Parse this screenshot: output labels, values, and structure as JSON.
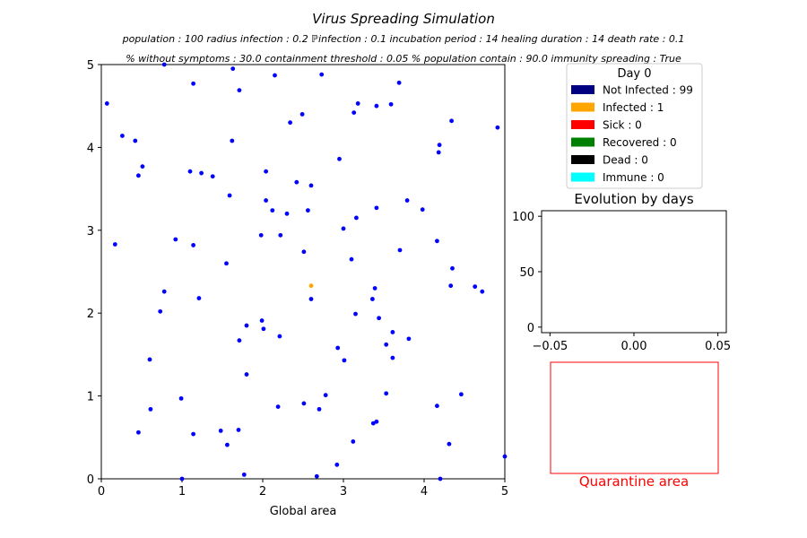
{
  "chart_data": [
    {
      "type": "scatter",
      "title": "Virus Spreading Simulation",
      "subtitle": {
        "line1": [
          "population : 100",
          "radius infection : 0.2",
          "ℙinfection : 0.1",
          "incubation period : 14",
          "healing duration : 14",
          "death rate : 0.1"
        ],
        "line2": [
          "% without symptoms : 30.0",
          "containment threshold : 0.05",
          "% population contain : 90.0",
          "immunity spreading : True"
        ]
      },
      "xlabel": "Global area",
      "ylabel": "",
      "xlim": [
        0,
        5
      ],
      "ylim": [
        0,
        5
      ],
      "xticks": [
        "0",
        "1",
        "2",
        "3",
        "4",
        "5"
      ],
      "yticks": [
        "0",
        "1",
        "2",
        "3",
        "4",
        "5"
      ],
      "grid": false,
      "series": [
        {
          "name": "Not Infected",
          "color": "#0000ff",
          "points": [
            [
              0.07,
              4.53
            ],
            [
              0.26,
              4.14
            ],
            [
              0.42,
              4.08
            ],
            [
              0.51,
              3.77
            ],
            [
              0.46,
              3.66
            ],
            [
              0.78,
              5.0
            ],
            [
              1.14,
              4.77
            ],
            [
              1.63,
              4.95
            ],
            [
              1.71,
              4.69
            ],
            [
              2.15,
              4.87
            ],
            [
              2.73,
              4.88
            ],
            [
              3.13,
              4.42
            ],
            [
              3.18,
              4.53
            ],
            [
              3.41,
              4.5
            ],
            [
              3.59,
              4.52
            ],
            [
              3.69,
              4.78
            ],
            [
              2.34,
              4.3
            ],
            [
              2.49,
              4.4
            ],
            [
              1.62,
              4.08
            ],
            [
              4.34,
              4.32
            ],
            [
              4.91,
              4.24
            ],
            [
              4.19,
              4.03
            ],
            [
              4.18,
              3.94
            ],
            [
              2.95,
              3.86
            ],
            [
              1.1,
              3.71
            ],
            [
              1.24,
              3.69
            ],
            [
              1.38,
              3.65
            ],
            [
              2.04,
              3.71
            ],
            [
              2.42,
              3.58
            ],
            [
              2.6,
              3.54
            ],
            [
              1.59,
              3.42
            ],
            [
              2.04,
              3.36
            ],
            [
              2.12,
              3.24
            ],
            [
              2.3,
              3.2
            ],
            [
              2.56,
              3.24
            ],
            [
              3.41,
              3.27
            ],
            [
              3.79,
              3.36
            ],
            [
              3.98,
              3.25
            ],
            [
              3.16,
              3.15
            ],
            [
              3.0,
              3.02
            ],
            [
              0.17,
              2.83
            ],
            [
              0.92,
              2.89
            ],
            [
              1.14,
              2.82
            ],
            [
              1.98,
              2.94
            ],
            [
              2.22,
              2.94
            ],
            [
              2.51,
              2.74
            ],
            [
              3.7,
              2.76
            ],
            [
              4.16,
              2.87
            ],
            [
              1.55,
              2.6
            ],
            [
              3.1,
              2.65
            ],
            [
              4.35,
              2.54
            ],
            [
              0.78,
              2.26
            ],
            [
              1.21,
              2.18
            ],
            [
              2.6,
              2.17
            ],
            [
              3.39,
              2.3
            ],
            [
              3.36,
              2.17
            ],
            [
              4.33,
              2.33
            ],
            [
              4.63,
              2.32
            ],
            [
              4.72,
              2.26
            ],
            [
              0.73,
              2.02
            ],
            [
              3.15,
              1.99
            ],
            [
              3.44,
              1.94
            ],
            [
              1.8,
              1.85
            ],
            [
              1.99,
              1.91
            ],
            [
              2.01,
              1.81
            ],
            [
              2.21,
              1.72
            ],
            [
              1.71,
              1.67
            ],
            [
              3.61,
              1.77
            ],
            [
              3.81,
              1.69
            ],
            [
              3.53,
              1.62
            ],
            [
              2.93,
              1.58
            ],
            [
              3.61,
              1.46
            ],
            [
              3.01,
              1.43
            ],
            [
              0.6,
              1.44
            ],
            [
              1.8,
              1.26
            ],
            [
              0.99,
              0.97
            ],
            [
              2.78,
              1.01
            ],
            [
              3.53,
              1.03
            ],
            [
              4.46,
              1.02
            ],
            [
              0.61,
              0.84
            ],
            [
              2.19,
              0.87
            ],
            [
              2.51,
              0.91
            ],
            [
              2.7,
              0.84
            ],
            [
              4.16,
              0.88
            ],
            [
              3.37,
              0.67
            ],
            [
              3.41,
              0.69
            ],
            [
              0.46,
              0.56
            ],
            [
              1.14,
              0.54
            ],
            [
              1.48,
              0.58
            ],
            [
              1.7,
              0.59
            ],
            [
              3.12,
              0.45
            ],
            [
              1.56,
              0.41
            ],
            [
              4.31,
              0.42
            ],
            [
              2.92,
              0.17
            ],
            [
              1.77,
              0.05
            ],
            [
              2.67,
              0.03
            ],
            [
              1.0,
              0.0
            ],
            [
              5.0,
              0.27
            ],
            [
              4.2,
              0.0
            ]
          ]
        },
        {
          "name": "Infected",
          "color": "#ffa500",
          "points": [
            [
              2.6,
              2.33
            ]
          ]
        }
      ]
    },
    {
      "type": "line",
      "title": "Evolution by days",
      "xlim": [
        -0.055,
        0.055
      ],
      "ylim": [
        -5,
        105
      ],
      "xticks": [
        "−0.05",
        "0.00",
        "0.05"
      ],
      "yticks": [
        "0",
        "50",
        "100"
      ],
      "series": []
    }
  ],
  "legend": {
    "title": "Day 0",
    "entries": [
      {
        "label": "Not Infected : 99",
        "color": "#000080"
      },
      {
        "label": "Infected : 1",
        "color": "#ffa500"
      },
      {
        "label": "Sick : 0",
        "color": "#ff0000"
      },
      {
        "label": "Recovered : 0",
        "color": "#008000"
      },
      {
        "label": "Dead : 0",
        "color": "#000000"
      },
      {
        "label": "Immune : 0",
        "color": "#00ffff"
      }
    ]
  },
  "quarantine": {
    "label": "Quarantine area",
    "color": "#ff0000"
  }
}
